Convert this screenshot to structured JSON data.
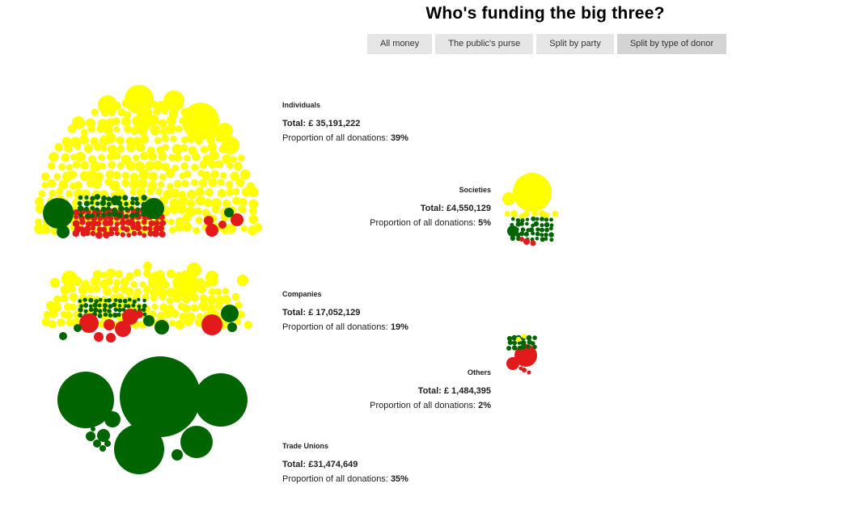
{
  "title": "Who's funding the big three?",
  "tabs": [
    {
      "label": "All money",
      "active": false
    },
    {
      "label": "The public's purse",
      "active": false
    },
    {
      "label": "Split by party",
      "active": false
    },
    {
      "label": "Split by type of donor",
      "active": true
    }
  ],
  "colors": {
    "yellow": "#ffff00",
    "green": "#006400",
    "red": "#e31a1c"
  },
  "groups": {
    "individuals": {
      "name": "Individuals",
      "total_label": "Total:",
      "total": "£ 35,191,222",
      "prop_label": "Proportion of all donations:",
      "prop": "39%"
    },
    "societies": {
      "name": "Societies",
      "total_label": "Total:",
      "total": "£4,550,129",
      "prop_label": "Proportion of all donations:",
      "prop": "5%"
    },
    "companies": {
      "name": "Companies",
      "total_label": "Total:",
      "total": "£ 17,052,129",
      "prop_label": "Proportion of all donations:",
      "prop": "19%"
    },
    "others": {
      "name": "Others",
      "total_label": "Total:",
      "total": "£ 1,484,395",
      "prop_label": "Proportion of all donations:",
      "prop": "2%"
    },
    "trade_unions": {
      "name": "Trade Unions",
      "total_label": "Total:",
      "total": "£31,474,649",
      "prop_label": "Proportion of all donations:",
      "prop": "35%"
    }
  }
}
